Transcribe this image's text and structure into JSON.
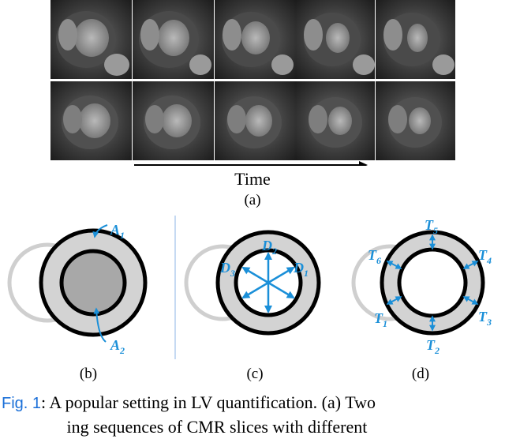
{
  "figure": {
    "time_label": "Time",
    "panel_a_label": "(a)",
    "panel_b_label": "(b)",
    "panel_c_label": "(c)",
    "panel_d_label": "(d)",
    "areas": [
      "A",
      "A"
    ],
    "area_subs": [
      "1",
      "2"
    ],
    "dims": [
      "D",
      "D",
      "D"
    ],
    "dim_subs": [
      "2",
      "3",
      "1"
    ],
    "thickness": [
      "T",
      "T",
      "T",
      "T",
      "T",
      "T"
    ],
    "thickness_subs": [
      "5",
      "6",
      "4",
      "1",
      "3",
      "2"
    ],
    "arrow_color": "#1a8fd8",
    "frames_per_row": 5,
    "rows": 2
  },
  "caption": {
    "label": "Fig. 1",
    "text": ": A popular setting in LV quantification. (a) Two",
    "line2": "               ing sequences of CMR slices with different       "
  }
}
